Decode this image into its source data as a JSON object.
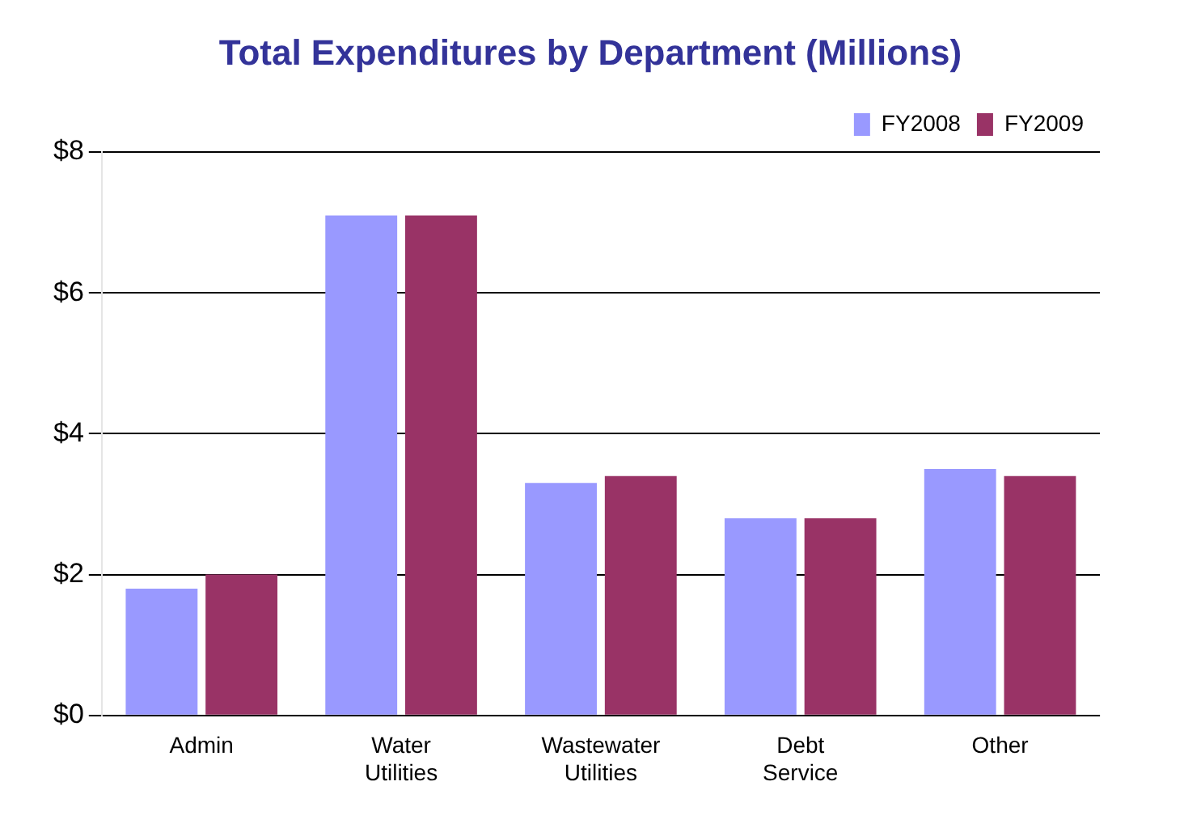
{
  "chart_data": {
    "type": "bar",
    "title": "Total Expenditures by Department (Millions)",
    "categories": [
      "Admin",
      "Water Utilities",
      "Wastewater Utilities",
      "Debt Service",
      "Other"
    ],
    "series": [
      {
        "name": "FY2008",
        "color": "#9999ff",
        "values": [
          1.8,
          7.1,
          3.3,
          2.8,
          3.5
        ]
      },
      {
        "name": "FY2009",
        "color": "#993366",
        "values": [
          2.0,
          7.1,
          3.4,
          2.8,
          3.4
        ]
      }
    ],
    "ylim": [
      0,
      8
    ],
    "yticks": [
      {
        "value": 0,
        "label": "$0"
      },
      {
        "value": 2,
        "label": "$2"
      },
      {
        "value": 4,
        "label": "$4"
      },
      {
        "value": 6,
        "label": "$6"
      },
      {
        "value": 8,
        "label": "$8"
      }
    ],
    "grid": "y",
    "legend": "top right"
  }
}
